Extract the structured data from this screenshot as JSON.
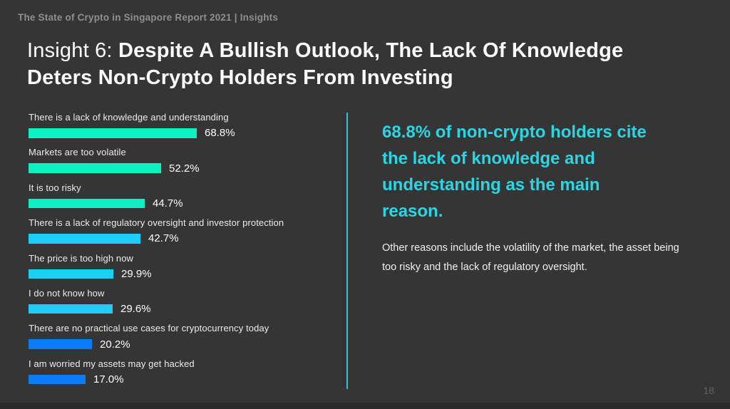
{
  "slide": {
    "eyebrow": "The State of Crypto in Singapore Report 2021 | Insights",
    "page_number": "18",
    "background_color": "#353535"
  },
  "title": {
    "prefix": "Insight 6: ",
    "line1_bold": "Despite A Bullish Outlook, The Lack Of Knowledge",
    "line2_bold": "Deters Non-Crypto Holders From Investing"
  },
  "chart_data": {
    "type": "bar",
    "orientation": "horizontal",
    "title": "",
    "xlabel": "",
    "ylabel": "",
    "xlim": [
      0,
      70
    ],
    "grid": false,
    "legend": "none",
    "categories": [
      "There is a lack of knowledge and understanding",
      "Markets are too volatile",
      "It is too risky",
      "There is a lack of regulatory oversight and investor protection",
      "The price is too high now",
      "I do not know how",
      "There are no practical use cases for cryptocurrency today",
      "I am worried my assets may get hacked"
    ],
    "values": [
      68.8,
      52.2,
      44.7,
      42.7,
      29.9,
      29.6,
      20.2,
      17.0
    ],
    "value_labels": [
      "68.8%",
      "52.2%",
      "44.7%",
      "42.7%",
      "29.9%",
      "29.6%",
      "20.2%",
      "17.0%"
    ],
    "bar_colors": [
      "#0bf2c3",
      "#0df0c1",
      "#10eec4",
      "#1dcff8",
      "#19d0f8",
      "#1fccf7",
      "#0b7cf6",
      "#0b7cf6"
    ]
  },
  "insight_panel": {
    "headline_lines": [
      "68.8% of non-crypto holders cite",
      "the lack of knowledge and",
      "understanding as the main",
      "reason."
    ],
    "headline_full": "68.8% of non-crypto holders cite the lack of knowledge and understanding as the main reason.",
    "body_lines": [
      "Other reasons include the volatility of the market, the asset being",
      "too risky and the lack of regulatory oversight."
    ],
    "body_full": "Other reasons include the volatility of the market, the asset being too risky and the lack of regulatory oversight.",
    "headline_color": "#28d6e4",
    "divider_color": "#2cc6ce"
  }
}
